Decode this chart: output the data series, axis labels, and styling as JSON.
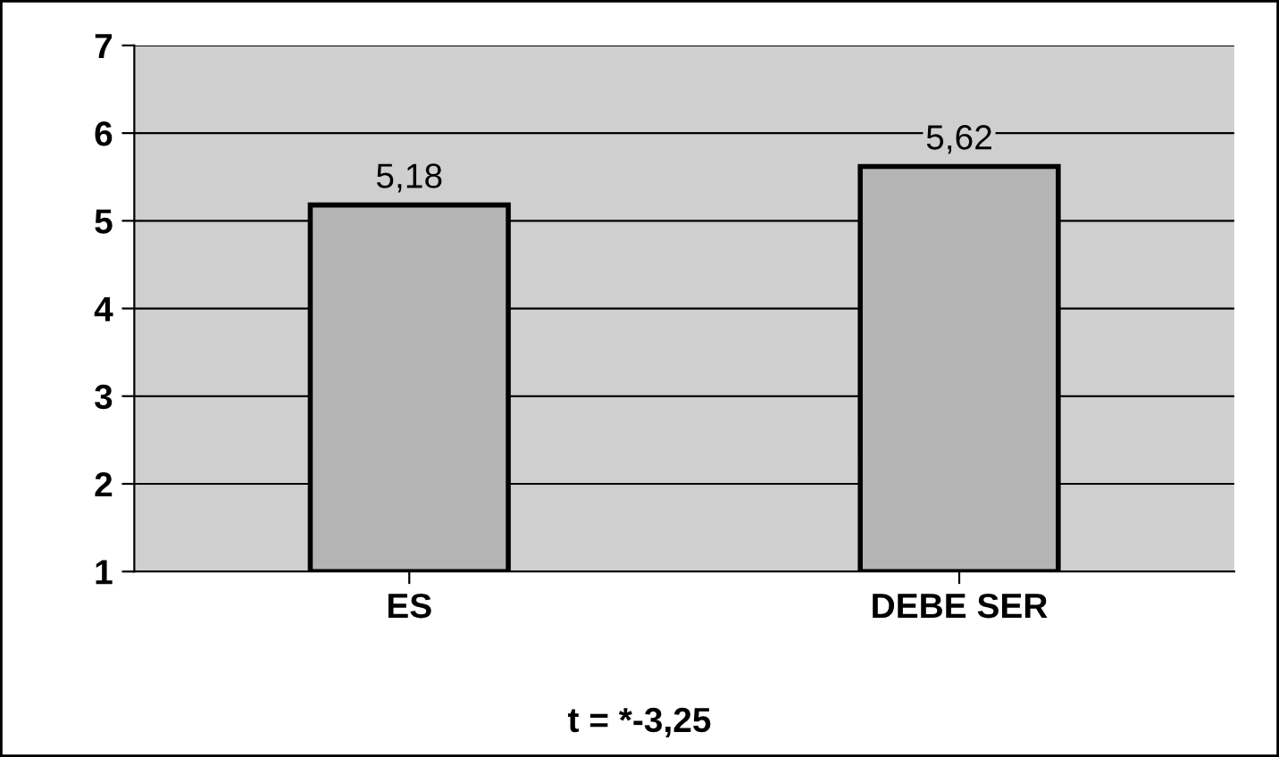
{
  "chart_data": {
    "type": "bar",
    "categories": [
      "ES",
      "DEBE SER"
    ],
    "values": [
      5.18,
      5.62
    ],
    "color": "#b4b4b4",
    "value_labels": [
      "5,18",
      "5,62"
    ],
    "ylim": [
      1,
      7
    ],
    "yticks": [
      1,
      2,
      3,
      4,
      5,
      6,
      7
    ],
    "grid": "y",
    "annotations": [
      "t = *-3,25"
    ]
  }
}
